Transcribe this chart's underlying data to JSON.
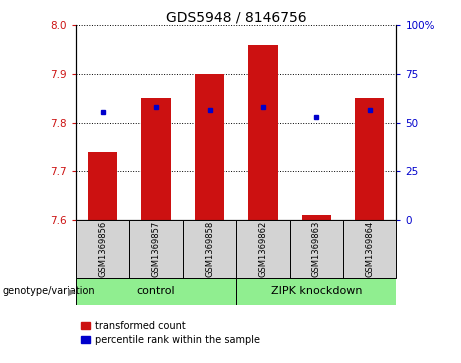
{
  "title": "GDS5948 / 8146756",
  "samples": [
    "GSM1369856",
    "GSM1369857",
    "GSM1369858",
    "GSM1369862",
    "GSM1369863",
    "GSM1369864"
  ],
  "red_values": [
    7.74,
    7.85,
    7.9,
    7.96,
    7.61,
    7.85
  ],
  "blue_values": [
    7.821,
    7.831,
    7.825,
    7.831,
    7.812,
    7.825
  ],
  "y_min": 7.6,
  "y_max": 8.0,
  "y_ticks": [
    7.6,
    7.7,
    7.8,
    7.9,
    8.0
  ],
  "right_y_ticks": [
    0,
    25,
    50,
    75,
    100
  ],
  "right_y_labels": [
    "0",
    "25",
    "50",
    "75",
    "100%"
  ],
  "bar_color": "#cc1111",
  "dot_color": "#0000cc",
  "control_label": "control",
  "zipk_label": "ZIPK knockdown",
  "genotype_label": "genotype/variation",
  "legend_red": "transformed count",
  "legend_blue": "percentile rank within the sample",
  "title_fontsize": 10,
  "tick_fontsize": 7.5,
  "sample_fontsize": 6,
  "group_fontsize": 8,
  "legend_fontsize": 7,
  "bg_color": "#d3d3d3",
  "green_color": "#90ee90"
}
